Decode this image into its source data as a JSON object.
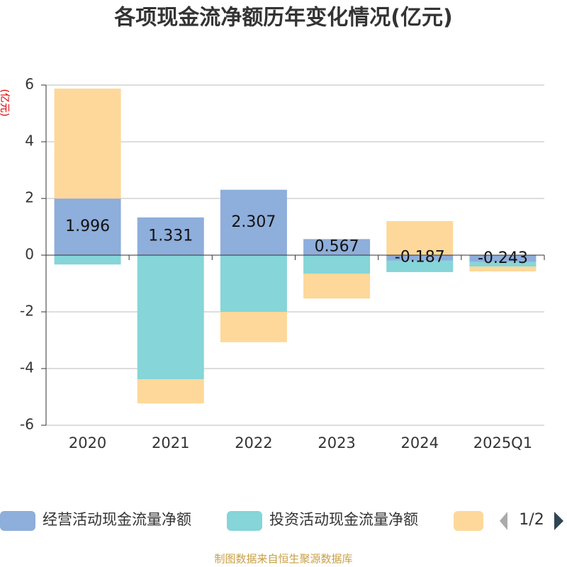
{
  "chart_data": {
    "type": "bar",
    "stacked": true,
    "title": "各项现金流净额历年变化情况(亿元)",
    "y_axis_label": "(亿元)",
    "categories": [
      "2020",
      "2021",
      "2022",
      "2023",
      "2024",
      "2025Q1"
    ],
    "series": [
      {
        "name": "经营活动现金流量净额",
        "color": "#8eaedb",
        "show_labels": true,
        "values": [
          1.996,
          1.331,
          2.307,
          0.567,
          -0.187,
          -0.243
        ]
      },
      {
        "name": "投资活动现金流量净额",
        "color": "#86d5d8",
        "values": [
          -0.33,
          -4.38,
          -2.0,
          -0.65,
          -0.41,
          -0.16
        ]
      },
      {
        "color": "#fdd89a",
        "values": [
          3.88,
          -0.85,
          -1.07,
          -0.88,
          1.2,
          -0.17
        ]
      }
    ],
    "ylim": [
      -6,
      6
    ],
    "yticks": [
      -6,
      -4,
      -2,
      0,
      2,
      4,
      6
    ],
    "grid": true,
    "legend_page": "1/2",
    "source": "制图数据来自恒生聚源数据库"
  }
}
